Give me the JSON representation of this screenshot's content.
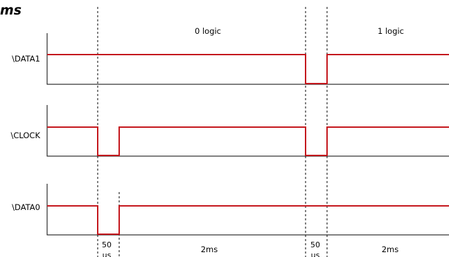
{
  "title": "ms",
  "signals": [
    {
      "name": "\\DATA1"
    },
    {
      "name": "\\CLOCK"
    },
    {
      "name": "\\DATA0"
    }
  ],
  "regions": [
    {
      "label": "0 logic"
    },
    {
      "label": "1 logic"
    }
  ],
  "durations": [
    {
      "top": "50",
      "bottom": "us"
    },
    {
      "text": "2ms"
    },
    {
      "top": "50",
      "bottom": "us"
    },
    {
      "text": "2ms"
    }
  ],
  "colors": {
    "signal": "#c4161c",
    "axis": "#000000",
    "guide": "#000000"
  }
}
